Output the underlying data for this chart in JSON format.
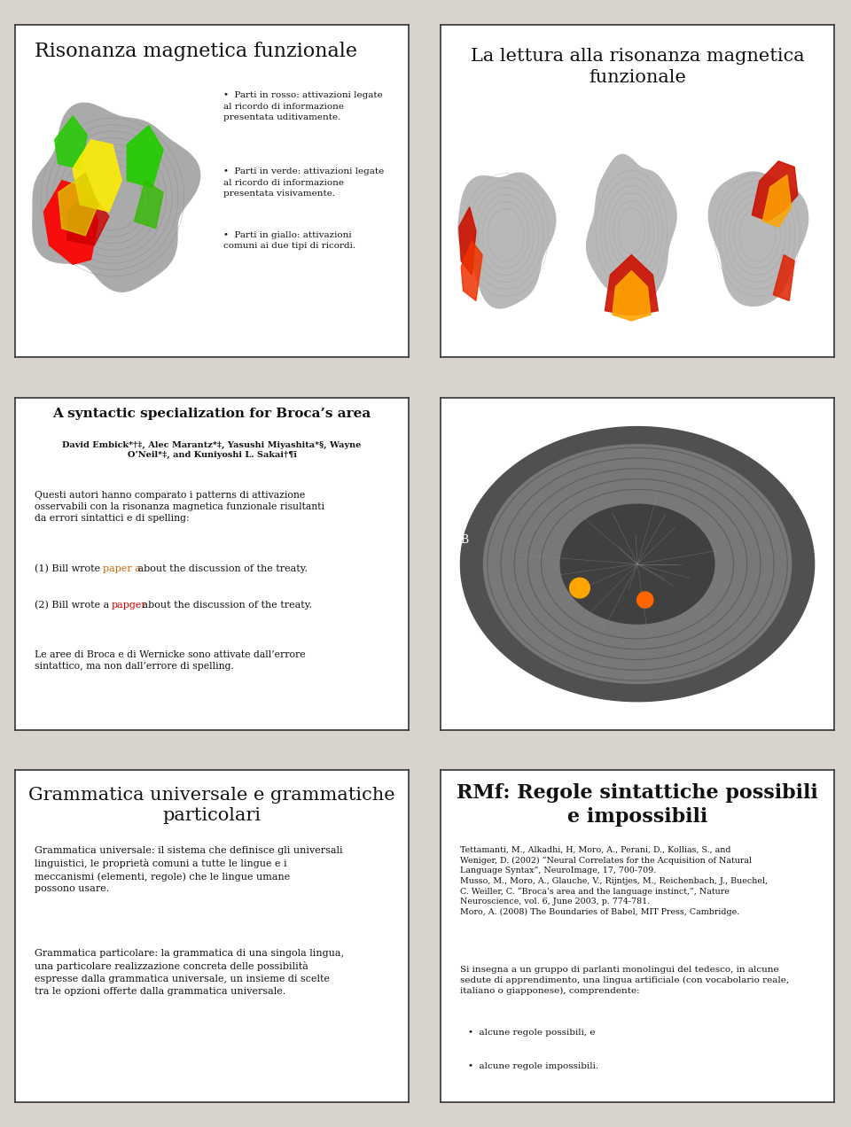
{
  "bg_color": "#d8d4cc",
  "panel_bg": "#ffffff",
  "border_color": "#333333",
  "text_color": "#111111",
  "panel1": {
    "title": "Risonanza magnetica funzionale",
    "title_size": 16,
    "bullet_text": [
      "Parti in rosso: attivazioni legate\nal ricordo di informazione\npresentata uditivamente.",
      "Parti in verde: attivazioni legate\nal ricordo di informazione\npresentata visivamente.",
      "Parti in giallo: attivazioni\ncomuni ai due tipi di ricordi."
    ]
  },
  "panel2": {
    "title": "La lettura alla risonanza magnetica\nfunzionale",
    "title_size": 15
  },
  "panel3": {
    "title": "A syntactic specialization for Broca’s area",
    "title_size": 11,
    "authors": "David Embick*†‡, Alec Marantz*‡, Yasushi Miyashita*§, Wayne\nO’Neil*‡, and Kuniyoshi L. Sakai†¶ī",
    "body": "Questi autori hanno comparato i patterns di attivazione\nosservabili con la risonanza magnetica funzionale risultanti\nda errori sintattici e di spelling:",
    "sentence1_pre": "(1) Bill wrote ",
    "sentence1_col": "paper a",
    "sentence1_post": " about the discussion of the treaty.",
    "sentence2_pre": "(2) Bill wrote a ",
    "sentence2_col": "papger",
    "sentence2_post": " about the discussion of the treaty.",
    "footer": "Le aree di Broca e di Wernicke sono attivate dall’errore\nsintattico, ma non dall’errore di spelling."
  },
  "panel5": {
    "title": "Grammatica universale e grammatiche\nparticolari",
    "title_size": 15,
    "body1": "Grammatica universale: il sistema che definisce gli universali\nlinguistici, le proprietà comuni a tutte le lingue e i\nmeccanismi (elementi, regole) che le lingue umane\npossono usare.",
    "body2": "Grammatica particolare: la grammatica di una singola lingua,\nuna particolare realizzazione concreta delle possibilità\nespresse dalla grammatica universale, un insieme di scelte\ntra le opzioni offerte dalla grammatica universale."
  },
  "panel6": {
    "title": "RMf: Regole sintattiche possibili\ne impossibili",
    "title_size": 16,
    "refs": "Tettamanti, M., Alkadhi, H, Moro, A., Perani, D., Kollias, S., and\nWeniger, D. (2002) “Neural Correlates for the Acquisition of Natural\nLanguage Syntax”, NeuroImage, 17, 700-709.\nMusso, M., Moro, A., Glauche, V., Rijntjes, M., Reichenbach, J., Buechel,\nC. Weiller, C. “Broca’s area and the language instinct,”, Nature\nNeuroscience, vol. 6, June 2003, p. 774-781.\nMoro, A. (2008) The Boundaries of Babel, MIT Press, Cambridge.",
    "body": "Si insegna a un gruppo di parlanti monolingui del tedesco, in alcune\nsedute di apprendimento, una lingua artificiale (con vocabolario reale,\nitaliano o giapponese), comprendente:",
    "bullets": [
      "•  alcune regole possibili, e",
      "•  alcune regole impossibili."
    ]
  }
}
